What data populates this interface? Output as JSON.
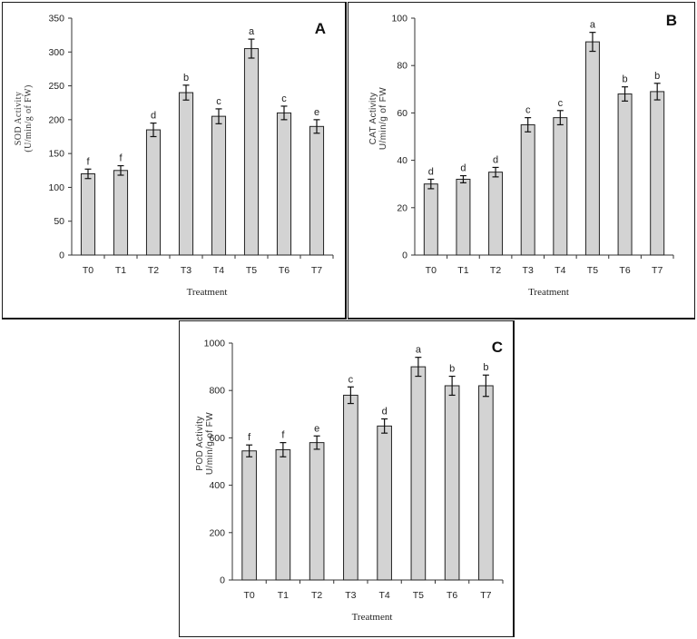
{
  "chart_data": [
    {
      "type": "bar",
      "panel_letter": "A",
      "categories": [
        "T0",
        "T1",
        "T2",
        "T3",
        "T4",
        "T5",
        "T6",
        "T7"
      ],
      "values": [
        120,
        125,
        185,
        240,
        205,
        305,
        210,
        190
      ],
      "errors": [
        7,
        7,
        10,
        11,
        11,
        14,
        10,
        10
      ],
      "significance_letters": [
        "f",
        "f",
        "d",
        "b",
        "c",
        "a",
        "c",
        "e"
      ],
      "xlabel": "Treatment",
      "ylabel_lines": [
        "SOD  Activity",
        "(U/min/g of FW)"
      ],
      "ylim": [
        0,
        350
      ],
      "yticks": [
        0,
        50,
        100,
        150,
        200,
        250,
        300,
        350
      ],
      "bar_color": "#d3d3d3",
      "grid": false
    },
    {
      "type": "bar",
      "panel_letter": "B",
      "categories": [
        "T0",
        "T1",
        "T2",
        "T3",
        "T4",
        "T5",
        "T6",
        "T7"
      ],
      "values": [
        30,
        32,
        35,
        55,
        58,
        90,
        68,
        69
      ],
      "errors": [
        2,
        1.5,
        2,
        3,
        3,
        4,
        3,
        3.5
      ],
      "significance_letters": [
        "d",
        "d",
        "d",
        "c",
        "c",
        "a",
        "b",
        "b"
      ],
      "xlabel": "Treatment",
      "ylabel_lines": [
        "CAT Activity",
        "U/min/g of FW"
      ],
      "ylim": [
        0,
        100
      ],
      "yticks": [
        0,
        20,
        40,
        60,
        80,
        100
      ],
      "bar_color": "#d3d3d3",
      "grid": false
    },
    {
      "type": "bar",
      "panel_letter": "C",
      "categories": [
        "T0",
        "T1",
        "T2",
        "T3",
        "T4",
        "T5",
        "T6",
        "T7"
      ],
      "values": [
        545,
        550,
        580,
        780,
        650,
        900,
        820,
        820
      ],
      "errors": [
        25,
        30,
        28,
        35,
        30,
        40,
        40,
        45
      ],
      "significance_letters": [
        "f",
        "f",
        "e",
        "c",
        "d",
        "a",
        "b",
        "b"
      ],
      "xlabel": "Treatment",
      "ylabel_lines": [
        "POD Activity",
        "U/min/g of FW"
      ],
      "ylim": [
        0,
        1000
      ],
      "yticks": [
        0,
        200,
        400,
        600,
        800,
        1000
      ],
      "bar_color": "#d3d3d3",
      "grid": false
    }
  ]
}
